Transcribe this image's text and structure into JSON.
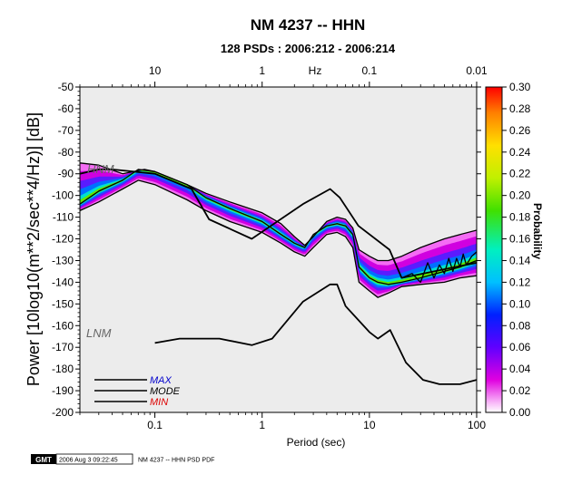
{
  "chart_data": {
    "type": "heatmap",
    "title": "NM 4237 -- HHN",
    "subtitle": "128 PSDs : 2006:212 - 2006:214",
    "xlabel": "Period (sec)",
    "ylabel": "Power [10log10(m**2/sec**4/Hz)] [dB]",
    "top_axis_label": "Hz",
    "x_scale": "log",
    "xlim": [
      0.02,
      100
    ],
    "ylim": [
      -200,
      -50
    ],
    "x_ticks": [
      "0.1",
      "1",
      "10",
      "100"
    ],
    "top_ticks": [
      "10",
      "1",
      "0.1",
      "0.01"
    ],
    "y_ticks": [
      "-50",
      "-60",
      "-70",
      "-80",
      "-90",
      "-100",
      "-110",
      "-120",
      "-130",
      "-140",
      "-150",
      "-160",
      "-170",
      "-180",
      "-190",
      "-200"
    ],
    "colorbar_label": "Probability",
    "colorbar_range": [
      0,
      0.3
    ],
    "colorbar_ticks": [
      "0.30",
      "0.28",
      "0.26",
      "0.24",
      "0.22",
      "0.20",
      "0.18",
      "0.16",
      "0.14",
      "0.12",
      "0.10",
      "0.08",
      "0.06",
      "0.04",
      "0.02",
      "0.00"
    ],
    "reference_labels": [
      "HNM",
      "LNM"
    ],
    "legend": {
      "placement": "bottom-left",
      "entries": [
        {
          "label": "MAX",
          "color": "#0000cc"
        },
        {
          "label": "MODE",
          "color": "#000000"
        },
        {
          "label": "MIN",
          "color": "#dd0000"
        }
      ]
    },
    "series": [
      {
        "name": "MAX",
        "x": [
          0.02,
          0.03,
          0.05,
          0.08,
          0.1,
          0.2,
          0.3,
          0.5,
          1,
          1.5,
          2,
          2.5,
          3,
          4,
          5,
          6,
          7,
          8,
          10,
          12,
          15,
          20,
          30,
          50,
          70,
          100
        ],
        "y": [
          -85,
          -86,
          -90,
          -88,
          -89,
          -95,
          -99,
          -103,
          -108,
          -113,
          -119,
          -123,
          -119,
          -112,
          -110,
          -111,
          -115,
          -125,
          -128,
          -130,
          -130,
          -128,
          -124,
          -120,
          -118,
          -116
        ]
      },
      {
        "name": "MODE",
        "x": [
          0.02,
          0.03,
          0.05,
          0.07,
          0.1,
          0.2,
          0.3,
          0.5,
          1,
          1.5,
          2,
          2.5,
          3,
          4,
          5,
          6,
          7,
          8,
          10,
          12,
          15,
          20,
          30,
          50,
          70,
          100
        ],
        "y": [
          -104,
          -98,
          -93,
          -88,
          -89,
          -95,
          -101,
          -106,
          -112,
          -118,
          -122,
          -124,
          -118,
          -114,
          -113,
          -114,
          -118,
          -133,
          -138,
          -140,
          -141,
          -140,
          -138,
          -135,
          -133,
          -130
        ]
      },
      {
        "name": "MIN",
        "x": [
          0.02,
          0.03,
          0.05,
          0.07,
          0.1,
          0.2,
          0.3,
          0.5,
          1,
          1.5,
          2,
          2.5,
          3,
          4,
          5,
          6,
          7,
          8,
          10,
          12,
          15,
          20,
          30,
          50,
          70,
          100
        ],
        "y": [
          -107,
          -103,
          -97,
          -93,
          -95,
          -102,
          -107,
          -112,
          -117,
          -122,
          -126,
          -128,
          -124,
          -118,
          -117,
          -119,
          -124,
          -140,
          -144,
          -147,
          -145,
          -142,
          -141,
          -140,
          -138,
          -137
        ]
      },
      {
        "name": "HNM",
        "x": [
          0.02,
          0.03,
          0.04,
          0.1,
          0.22,
          0.32,
          0.8,
          2.4,
          4.3,
          5.3,
          7.9,
          15.4,
          20,
          100
        ],
        "y": [
          -90,
          -88,
          -88,
          -90,
          -97,
          -111,
          -120,
          -104,
          -97,
          -101,
          -114,
          -125,
          -138,
          -131
        ]
      },
      {
        "name": "LNM",
        "x": [
          0.1,
          0.17,
          0.4,
          0.8,
          1.24,
          2.4,
          4.3,
          5,
          6,
          10,
          12,
          15.6,
          21.9,
          31.6,
          45,
          70,
          100
        ],
        "y": [
          -168,
          -166,
          -166,
          -169,
          -166,
          -149,
          -141,
          -141,
          -151,
          -163,
          -166,
          -162,
          -177,
          -185,
          -187,
          -187,
          -185
        ]
      },
      {
        "name": "HNM-jagged",
        "x": [
          20,
          25,
          30,
          35,
          40,
          45,
          50,
          55,
          60,
          65,
          70,
          75,
          80,
          90,
          100
        ],
        "y": [
          -138,
          -136,
          -140,
          -131,
          -138,
          -132,
          -136,
          -129,
          -135,
          -129,
          -133,
          -127,
          -132,
          -128,
          -126
        ]
      }
    ]
  },
  "footer": {
    "logo": "GMT",
    "timestamp": "2006 Aug  3 09:22:45",
    "caption": "NM 4237 -- HHN PSD PDF"
  },
  "colors": {
    "plot_bg": "#ececec",
    "low_prob": "#f000f0",
    "high_prob": "#ff0000"
  }
}
